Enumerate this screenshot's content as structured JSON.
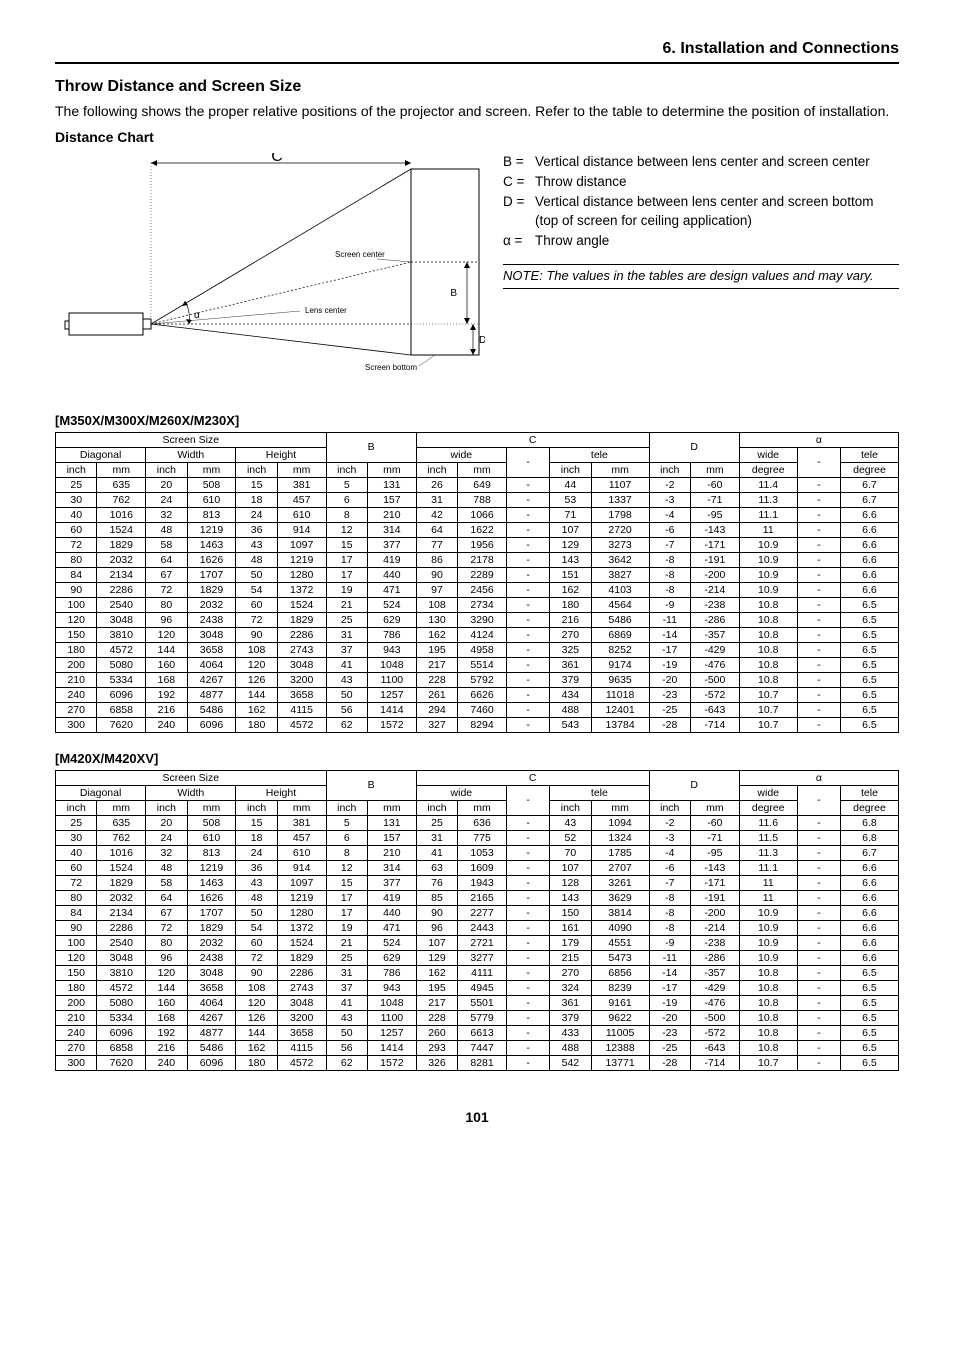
{
  "chapter_title": "6. Installation and Connections",
  "section": {
    "title": "Throw Distance and Screen Size",
    "desc": "The following shows the proper relative positions of the projector and screen. Refer to the table to determine the position of installation.",
    "chart_title": "Distance Chart"
  },
  "diagram": {
    "label_C": "C",
    "label_B": "B",
    "label_D": "D",
    "label_alpha": "α",
    "screen_center": "Screen center",
    "lens_center": "Lens center",
    "screen_bottom": "Screen bottom"
  },
  "legend": {
    "B": {
      "sym": "B =",
      "txt": "Vertical distance between lens center and screen center"
    },
    "C": {
      "sym": "C =",
      "txt": "Throw distance"
    },
    "D": {
      "sym": "D =",
      "txt": "Vertical distance between lens center and screen bottom (top of screen for ceiling application)"
    },
    "alpha": {
      "sym": "α =",
      "txt": "Throw angle"
    },
    "note": "NOTE: The values in the tables are design values and may vary."
  },
  "table_headers": {
    "screen_size": "Screen Size",
    "diagonal": "Diagonal",
    "width": "Width",
    "height": "Height",
    "B": "B",
    "C": "C",
    "wide": "wide",
    "tele": "tele",
    "D": "D",
    "alpha": "α",
    "inch": "inch",
    "mm": "mm",
    "degree": "degree",
    "dash": "-"
  },
  "tables": [
    {
      "model": "[M350X/M300X/M260X/M230X]",
      "rows": [
        [
          25,
          635,
          20,
          508,
          15,
          381,
          5,
          131,
          26,
          649,
          "-",
          44,
          1107,
          -2,
          -60,
          11.4,
          "-",
          6.7
        ],
        [
          30,
          762,
          24,
          610,
          18,
          457,
          6,
          157,
          31,
          788,
          "-",
          53,
          1337,
          -3,
          -71,
          11.3,
          "-",
          6.7
        ],
        [
          40,
          1016,
          32,
          813,
          24,
          610,
          8,
          210,
          42,
          1066,
          "-",
          71,
          1798,
          -4,
          -95,
          11.1,
          "-",
          6.6
        ],
        [
          60,
          1524,
          48,
          1219,
          36,
          914,
          12,
          314,
          64,
          1622,
          "-",
          107,
          2720,
          -6,
          -143,
          11.0,
          "-",
          6.6
        ],
        [
          72,
          1829,
          58,
          1463,
          43,
          1097,
          15,
          377,
          77,
          1956,
          "-",
          129,
          3273,
          -7,
          -171,
          10.9,
          "-",
          6.6
        ],
        [
          80,
          2032,
          64,
          1626,
          48,
          1219,
          17,
          419,
          86,
          2178,
          "-",
          143,
          3642,
          -8,
          -191,
          10.9,
          "-",
          6.6
        ],
        [
          84,
          2134,
          67,
          1707,
          50,
          1280,
          17,
          440,
          90,
          2289,
          "-",
          151,
          3827,
          -8,
          -200,
          10.9,
          "-",
          6.6
        ],
        [
          90,
          2286,
          72,
          1829,
          54,
          1372,
          19,
          471,
          97,
          2456,
          "-",
          162,
          4103,
          -8,
          -214,
          10.9,
          "-",
          6.6
        ],
        [
          100,
          2540,
          80,
          2032,
          60,
          1524,
          21,
          524,
          108,
          2734,
          "-",
          180,
          4564,
          -9,
          -238,
          10.8,
          "-",
          6.5
        ],
        [
          120,
          3048,
          96,
          2438,
          72,
          1829,
          25,
          629,
          130,
          3290,
          "-",
          216,
          5486,
          -11,
          -286,
          10.8,
          "-",
          6.5
        ],
        [
          150,
          3810,
          120,
          3048,
          90,
          2286,
          31,
          786,
          162,
          4124,
          "-",
          270,
          6869,
          -14,
          -357,
          10.8,
          "-",
          6.5
        ],
        [
          180,
          4572,
          144,
          3658,
          108,
          2743,
          37,
          943,
          195,
          4958,
          "-",
          325,
          8252,
          -17,
          -429,
          10.8,
          "-",
          6.5
        ],
        [
          200,
          5080,
          160,
          4064,
          120,
          3048,
          41,
          1048,
          217,
          5514,
          "-",
          361,
          9174,
          -19,
          -476,
          10.8,
          "-",
          6.5
        ],
        [
          210,
          5334,
          168,
          4267,
          126,
          3200,
          43,
          1100,
          228,
          5792,
          "-",
          379,
          9635,
          -20,
          -500,
          10.8,
          "-",
          6.5
        ],
        [
          240,
          6096,
          192,
          4877,
          144,
          3658,
          50,
          1257,
          261,
          6626,
          "-",
          434,
          11018,
          -23,
          -572,
          10.7,
          "-",
          6.5
        ],
        [
          270,
          6858,
          216,
          5486,
          162,
          4115,
          56,
          1414,
          294,
          7460,
          "-",
          488,
          12401,
          -25,
          -643,
          10.7,
          "-",
          6.5
        ],
        [
          300,
          7620,
          240,
          6096,
          180,
          4572,
          62,
          1572,
          327,
          8294,
          "-",
          543,
          13784,
          -28,
          -714,
          10.7,
          "-",
          6.5
        ]
      ]
    },
    {
      "model": "[M420X/M420XV]",
      "rows": [
        [
          25,
          635,
          20,
          508,
          15,
          381,
          5,
          131,
          25,
          636,
          "-",
          43,
          1094,
          -2,
          -60,
          11.6,
          "-",
          6.8
        ],
        [
          30,
          762,
          24,
          610,
          18,
          457,
          6,
          157,
          31,
          775,
          "-",
          52,
          1324,
          -3,
          -71,
          11.5,
          "-",
          6.8
        ],
        [
          40,
          1016,
          32,
          813,
          24,
          610,
          8,
          210,
          41,
          1053,
          "-",
          70,
          1785,
          -4,
          -95,
          11.3,
          "-",
          6.7
        ],
        [
          60,
          1524,
          48,
          1219,
          36,
          914,
          12,
          314,
          63,
          1609,
          "-",
          107,
          2707,
          -6,
          -143,
          11.1,
          "-",
          6.6
        ],
        [
          72,
          1829,
          58,
          1463,
          43,
          1097,
          15,
          377,
          76,
          1943,
          "-",
          128,
          3261,
          -7,
          -171,
          11.0,
          "-",
          6.6
        ],
        [
          80,
          2032,
          64,
          1626,
          48,
          1219,
          17,
          419,
          85,
          2165,
          "-",
          143,
          3629,
          -8,
          -191,
          11.0,
          "-",
          6.6
        ],
        [
          84,
          2134,
          67,
          1707,
          50,
          1280,
          17,
          440,
          90,
          2277,
          "-",
          150,
          3814,
          -8,
          -200,
          10.9,
          "-",
          6.6
        ],
        [
          90,
          2286,
          72,
          1829,
          54,
          1372,
          19,
          471,
          96,
          2443,
          "-",
          161,
          4090,
          -8,
          -214,
          10.9,
          "-",
          6.6
        ],
        [
          100,
          2540,
          80,
          2032,
          60,
          1524,
          21,
          524,
          107,
          2721,
          "-",
          179,
          4551,
          -9,
          -238,
          10.9,
          "-",
          6.6
        ],
        [
          120,
          3048,
          96,
          2438,
          72,
          1829,
          25,
          629,
          129,
          3277,
          "-",
          215,
          5473,
          -11,
          -286,
          10.9,
          "-",
          6.6
        ],
        [
          150,
          3810,
          120,
          3048,
          90,
          2286,
          31,
          786,
          162,
          4111,
          "-",
          270,
          6856,
          -14,
          -357,
          10.8,
          "-",
          6.5
        ],
        [
          180,
          4572,
          144,
          3658,
          108,
          2743,
          37,
          943,
          195,
          4945,
          "-",
          324,
          8239,
          -17,
          -429,
          10.8,
          "-",
          6.5
        ],
        [
          200,
          5080,
          160,
          4064,
          120,
          3048,
          41,
          1048,
          217,
          5501,
          "-",
          361,
          9161,
          -19,
          -476,
          10.8,
          "-",
          6.5
        ],
        [
          210,
          5334,
          168,
          4267,
          126,
          3200,
          43,
          1100,
          228,
          5779,
          "-",
          379,
          9622,
          -20,
          -500,
          10.8,
          "-",
          6.5
        ],
        [
          240,
          6096,
          192,
          4877,
          144,
          3658,
          50,
          1257,
          260,
          6613,
          "-",
          433,
          11005,
          -23,
          -572,
          10.8,
          "-",
          6.5
        ],
        [
          270,
          6858,
          216,
          5486,
          162,
          4115,
          56,
          1414,
          293,
          7447,
          "-",
          488,
          12388,
          -25,
          -643,
          10.8,
          "-",
          6.5
        ],
        [
          300,
          7620,
          240,
          6096,
          180,
          4572,
          62,
          1572,
          326,
          8281,
          "-",
          542,
          13771,
          -28,
          -714,
          10.7,
          "-",
          6.5
        ]
      ]
    }
  ],
  "page_number": "101",
  "style": {
    "border_color": "#000000",
    "text_color": "#000000",
    "background": "#ffffff"
  }
}
